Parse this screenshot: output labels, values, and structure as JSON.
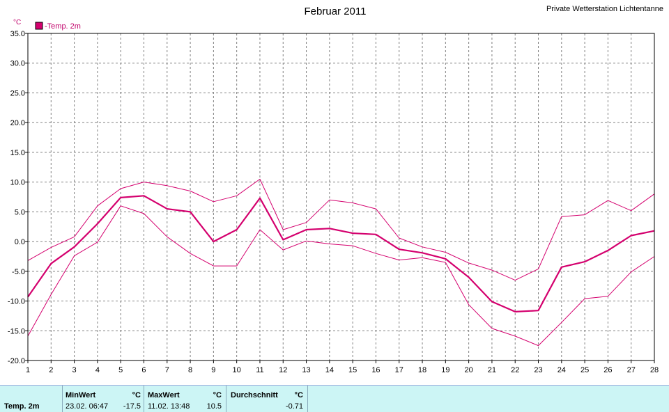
{
  "title": "Februar 2011",
  "station": "Private Wetterstation Lichtentanne",
  "colors": {
    "series": "#d4006e",
    "grid": "#808080",
    "stats_bg": "#ccf5f5"
  },
  "chart_data": {
    "type": "line",
    "unit_label": "°C",
    "legend": [
      {
        "label": "-Temp. 2m",
        "color": "#d4006e"
      }
    ],
    "x": [
      1,
      2,
      3,
      4,
      5,
      6,
      7,
      8,
      9,
      10,
      11,
      12,
      13,
      14,
      15,
      16,
      17,
      18,
      19,
      20,
      21,
      22,
      23,
      24,
      25,
      26,
      27,
      28
    ],
    "xlim": [
      1,
      28
    ],
    "ylim": [
      -20,
      35
    ],
    "yticks": [
      "35.0",
      "30.0",
      "25.0",
      "20.0",
      "15.0",
      "10.0",
      "5.0",
      "0.0",
      "-5.0",
      "-10.0",
      "-15.0",
      "-20.0"
    ],
    "grid": true,
    "series": [
      {
        "values": [
          -9.3,
          -3.7,
          -0.9,
          3.0,
          7.4,
          7.7,
          5.5,
          5.0,
          0.0,
          2.0,
          7.3,
          0.3,
          2.0,
          2.2,
          1.4,
          1.2,
          -1.3,
          -1.9,
          -2.9,
          -6.0,
          -10.1,
          -11.8,
          -11.6,
          -4.3,
          -3.4,
          -1.5,
          1.0,
          1.8
        ],
        "width": 2.2
      },
      {
        "values": [
          -3.2,
          -1.0,
          0.8,
          6.0,
          8.9,
          10.0,
          9.4,
          8.5,
          6.7,
          7.7,
          10.5,
          2.0,
          3.2,
          7.0,
          6.5,
          5.5,
          0.6,
          -0.9,
          -1.8,
          -3.6,
          -4.8,
          -6.5,
          -4.6,
          4.2,
          4.5,
          6.9,
          5.2,
          8.0
        ],
        "width": 1
      },
      {
        "values": [
          -15.9,
          -8.9,
          -2.4,
          -0.1,
          6.0,
          4.7,
          0.8,
          -2.0,
          -4.1,
          -4.1,
          2.0,
          -1.4,
          0.1,
          -0.4,
          -0.7,
          -2.0,
          -3.1,
          -2.7,
          -3.5,
          -10.6,
          -14.6,
          -15.9,
          -17.5,
          -13.6,
          -9.6,
          -9.2,
          -5.1,
          -2.5
        ],
        "width": 1
      }
    ]
  },
  "stats": {
    "row_label": "Temp. 2m",
    "min": {
      "header": "MinWert",
      "unit": "°C",
      "time": "23.02.  06:47",
      "value": "-17.5"
    },
    "max": {
      "header": "MaxWert",
      "unit": "°C",
      "time": "11.02.  13:48",
      "value": "10.5"
    },
    "avg": {
      "header": "Durchschnitt",
      "unit": "°C",
      "value": "-0.71"
    }
  }
}
